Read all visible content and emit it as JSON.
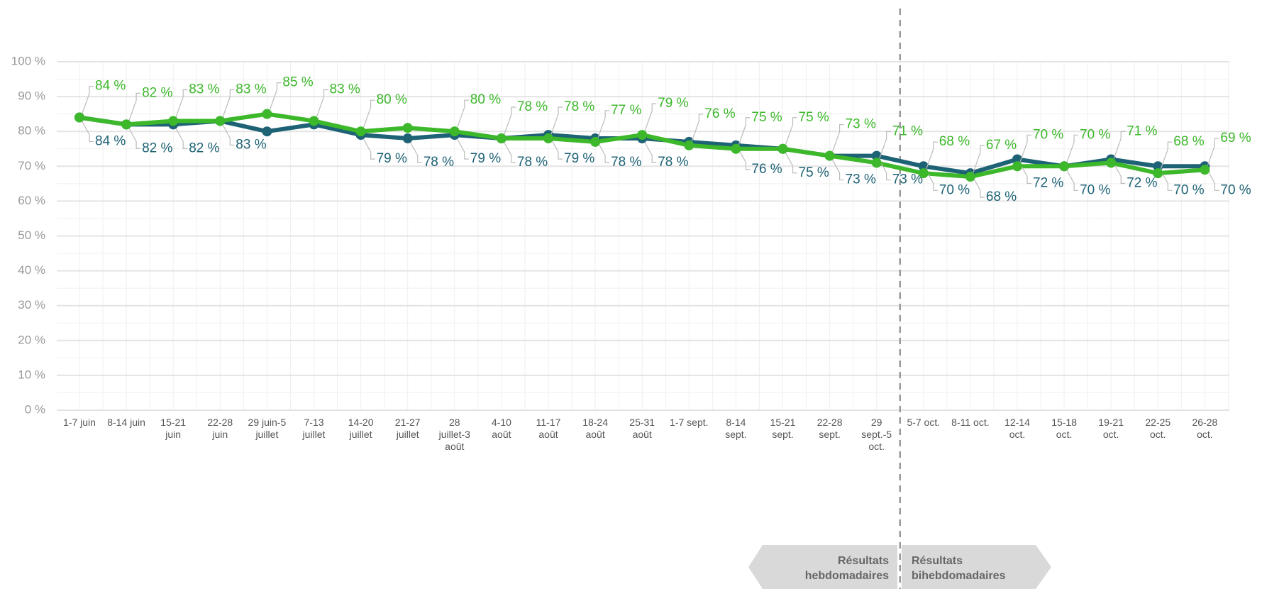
{
  "chart_data": {
    "type": "line",
    "categories": [
      "1-7 juin",
      "8-14 juin",
      "15-21 juin",
      "22-28 juin",
      "29 juin-5 juillet",
      "7-13 juillet",
      "14-20 juillet",
      "21-27 juillet",
      "28 juillet-3 août",
      "4-10 août",
      "11-17 août",
      "18-24 août",
      "25-31 août",
      "1-7 sept.",
      "8-14 sept.",
      "15-21 sept.",
      "22-28 sept.",
      "29 sept.-5 oct.",
      "5-7 oct.",
      "8-11 oct.",
      "12-14 oct.",
      "15-18 oct.",
      "19-21 oct.",
      "22-25 oct.",
      "26-28 oct."
    ],
    "series": [
      {
        "color": "#1e6275",
        "values": [
          84,
          82,
          82,
          83,
          80,
          82,
          79,
          78,
          79,
          78,
          79,
          78,
          78,
          77,
          76,
          75,
          73,
          73,
          70,
          68,
          72,
          70,
          72,
          70,
          70
        ],
        "value_labels": [
          "84 %",
          "82 %",
          "82 %",
          "83 %",
          null,
          null,
          "79 %",
          "78 %",
          "79 %",
          "78 %",
          "79 %",
          "78 %",
          "78 %",
          null,
          "76 %",
          "75 %",
          "73 %",
          "73 %",
          "70 %",
          "68 %",
          "72 %",
          "70 %",
          "72 %",
          "70 %",
          "70 %"
        ]
      },
      {
        "color": "#3cb82a",
        "values": [
          84,
          82,
          83,
          83,
          85,
          83,
          80,
          81,
          80,
          78,
          78,
          77,
          79,
          76,
          75,
          75,
          73,
          71,
          68,
          67,
          70,
          70,
          71,
          68,
          69
        ],
        "value_labels": [
          "84 %",
          "82 %",
          "83 %",
          "83 %",
          "85 %",
          "83 %",
          "80 %",
          null,
          "80 %",
          "78 %",
          "78 %",
          "77 %",
          "79 %",
          "76 %",
          "75 %",
          "75 %",
          "73 %",
          "71 %",
          "68 %",
          "67 %",
          "70 %",
          "70 %",
          "71 %",
          "68 %",
          "69 %"
        ]
      }
    ],
    "ylim": [
      0,
      100
    ],
    "yticks": [
      {
        "value": 0,
        "label": "0 %"
      },
      {
        "value": 10,
        "label": "10 %"
      },
      {
        "value": 20,
        "label": "20 %"
      },
      {
        "value": 30,
        "label": "30 %"
      },
      {
        "value": 40,
        "label": "40 %"
      },
      {
        "value": 50,
        "label": "50 %"
      },
      {
        "value": 60,
        "label": "60 %"
      },
      {
        "value": 70,
        "label": "70 %"
      },
      {
        "value": 80,
        "label": "80 %"
      },
      {
        "value": 90,
        "label": "90 %"
      },
      {
        "value": 100,
        "label": "100 %"
      }
    ],
    "grid": true,
    "annotations": [
      "Résultats hebdomadaires",
      "Résultats bihebdomadaires"
    ]
  }
}
